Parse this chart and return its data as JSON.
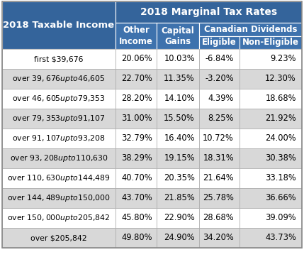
{
  "title_main": "2018 Marginal Tax Rates",
  "col_header_left": "2018 Taxable Income",
  "canadian_dividends_label": "Canadian Dividends",
  "rows": [
    [
      "first $39,676",
      "20.06%",
      "10.03%",
      "-6.84%",
      "9.23%"
    ],
    [
      "over $39,676 up to $46,605",
      "22.70%",
      "11.35%",
      "-3.20%",
      "12.30%"
    ],
    [
      "over $46,605 up to $79,353",
      "28.20%",
      "14.10%",
      "4.39%",
      "18.68%"
    ],
    [
      "over $79,353 up to $91,107",
      "31.00%",
      "15.50%",
      "8.25%",
      "21.92%"
    ],
    [
      "over $91,107 up to $93,208",
      "32.79%",
      "16.40%",
      "10.72%",
      "24.00%"
    ],
    [
      "over $93,208 up to $110,630",
      "38.29%",
      "19.15%",
      "18.31%",
      "30.38%"
    ],
    [
      "over $110,630 up to $144,489",
      "40.70%",
      "20.35%",
      "21.64%",
      "33.18%"
    ],
    [
      "over $144,489 up to $150,000",
      "43.70%",
      "21.85%",
      "25.78%",
      "36.66%"
    ],
    [
      "over $150,000 up to $205,842",
      "45.80%",
      "22.90%",
      "28.68%",
      "39.09%"
    ],
    [
      "over $205,842",
      "49.80%",
      "24.90%",
      "34.20%",
      "43.73%"
    ]
  ],
  "header_dark": "#34649B",
  "header_mid": "#3E72AD",
  "header_text": "#FFFFFF",
  "row_bg_white": "#FFFFFF",
  "row_bg_gray": "#D8D8D8",
  "cell_text": "#000000",
  "grid_color": "#AAAAAA",
  "figw": 4.29,
  "figh": 3.69,
  "dpi": 100
}
